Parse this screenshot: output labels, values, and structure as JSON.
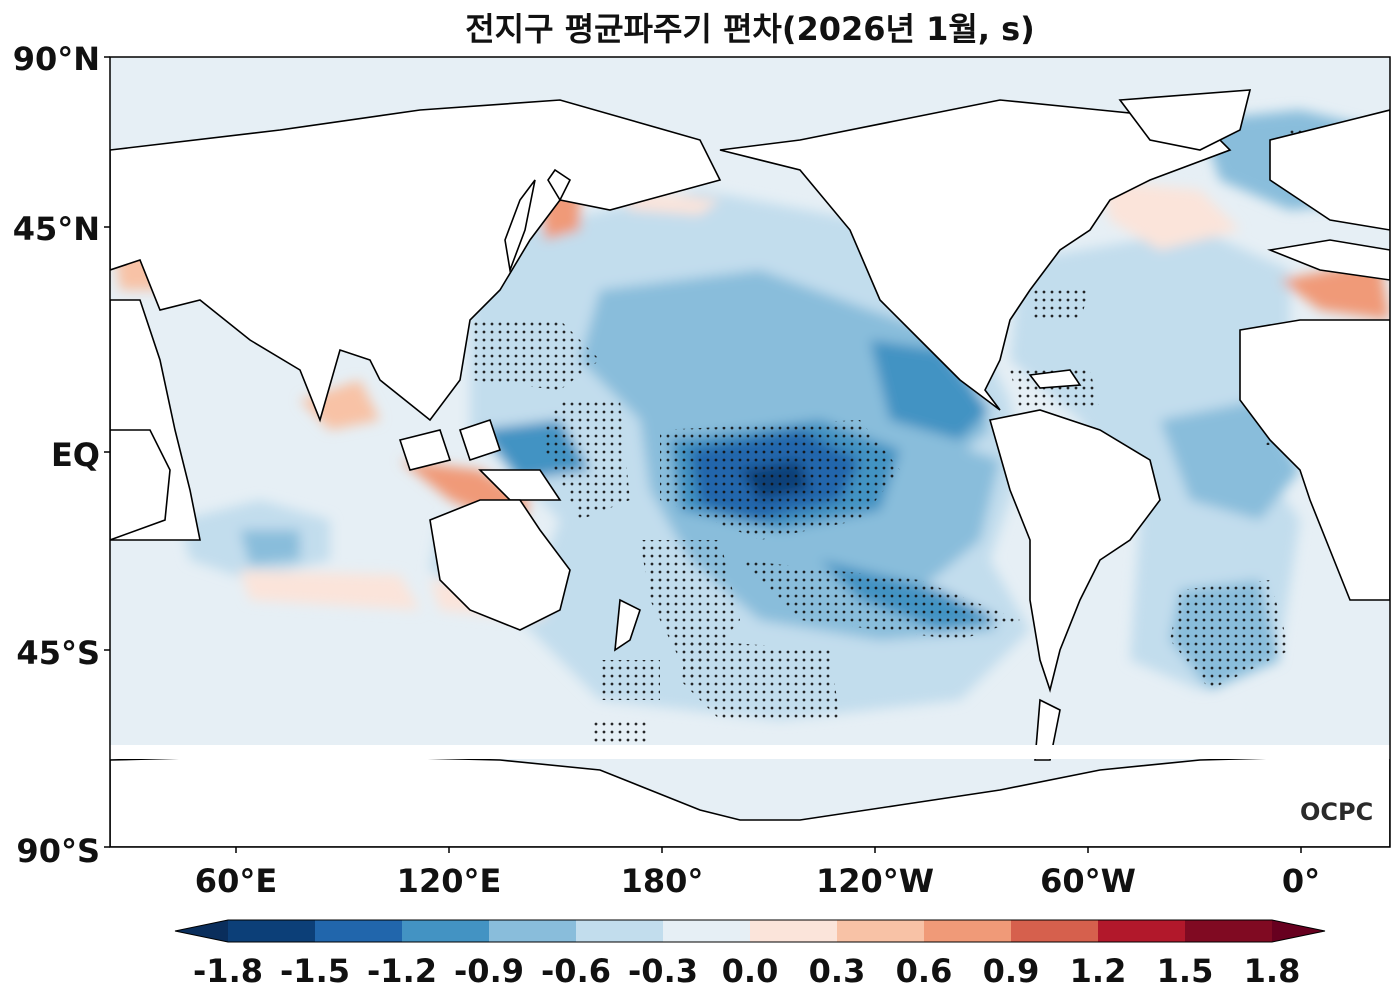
{
  "title": "전지구 평균파주기 편차(2026년 1월, s)",
  "lat_labels": [
    "90°N",
    "45°N",
    "EQ",
    "45°S",
    "90°S"
  ],
  "lon_labels": [
    "60°E",
    "120°E",
    "180°",
    "120°W",
    "60°W",
    "0°"
  ],
  "colorbar": {
    "ticks": [
      "-1.8",
      "-1.5",
      "-1.2",
      "-0.9",
      "-0.6",
      "-0.3",
      "0.0",
      "0.3",
      "0.6",
      "0.9",
      "1.2",
      "1.5",
      "1.8"
    ],
    "colors": [
      "#0c3f78",
      "#2166ac",
      "#4393c3",
      "#89bddb",
      "#c2dded",
      "#e6eff5",
      "#fbe4da",
      "#f8c2a6",
      "#f09a78",
      "#d6604d",
      "#b2182b",
      "#800a22"
    ]
  },
  "logo": "OCPC"
}
